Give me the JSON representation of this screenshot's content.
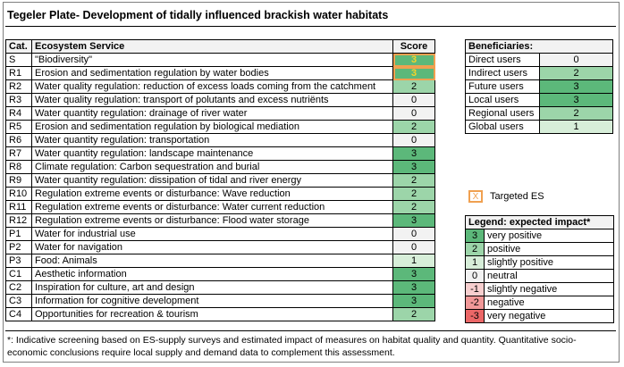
{
  "title": "Tegeler Plate- Development of tidally influenced brackish water habitats",
  "colors": {
    "3": "#5cb87a",
    "2": "#9cd5a9",
    "1": "#d7eed9",
    "0": "#f2f2f2",
    "-1": "#f7cfcf",
    "-2": "#f19898",
    "-3": "#eb6767",
    "targeted_border": "#f0a050",
    "targeted_text": "#f5d328"
  },
  "main": {
    "headers": {
      "cat": "Cat.",
      "service": "Ecosystem Service",
      "score": "Score"
    },
    "rows": [
      {
        "cat": "S",
        "service": "\"Biodiversity\"",
        "score": "3",
        "targeted": true
      },
      {
        "cat": "R1",
        "service": "Erosion and sedimentation regulation by water bodies",
        "score": "3",
        "targeted": true
      },
      {
        "cat": "R2",
        "service": "Water quality regulation: reduction of excess loads coming from the catchment",
        "score": "2"
      },
      {
        "cat": "R3",
        "service": "Water quality regulation: transport of polutants and excess nutriënts",
        "score": "0"
      },
      {
        "cat": "R4",
        "service": "Water quantity regulation: drainage of river water",
        "score": "0"
      },
      {
        "cat": "R5",
        "service": "Erosion and sedimentation regulation by biological mediation",
        "score": "2"
      },
      {
        "cat": "R6",
        "service": "Water quantity regulation: transportation",
        "score": "0"
      },
      {
        "cat": "R7",
        "service": "Water quantity regulation: landscape maintenance",
        "score": "3"
      },
      {
        "cat": "R8",
        "service": "Climate regulation: Carbon sequestration and burial",
        "score": "3"
      },
      {
        "cat": "R9",
        "service": "Water quantity regulation: dissipation of tidal and river energy",
        "score": "2"
      },
      {
        "cat": "R10",
        "service": "Regulation extreme events or disturbance: Wave reduction",
        "score": "2"
      },
      {
        "cat": "R11",
        "service": "Regulation extreme events or disturbance: Water current reduction",
        "score": "2"
      },
      {
        "cat": "R12",
        "service": "Regulation extreme events or disturbance: Flood water storage",
        "score": "3"
      },
      {
        "cat": "P1",
        "service": "Water for industrial use",
        "score": "0"
      },
      {
        "cat": "P2",
        "service": "Water for navigation",
        "score": "0"
      },
      {
        "cat": "P3",
        "service": "Food: Animals",
        "score": "1"
      },
      {
        "cat": "C1",
        "service": "Aesthetic information",
        "score": "3"
      },
      {
        "cat": "C2",
        "service": "Inspiration for culture, art and design",
        "score": "3"
      },
      {
        "cat": "C3",
        "service": "Information for cognitive development",
        "score": "3"
      },
      {
        "cat": "C4",
        "service": "Opportunities for recreation & tourism",
        "score": "2"
      }
    ]
  },
  "beneficiaries": {
    "header": "Beneficiaries:",
    "rows": [
      {
        "label": "Direct users",
        "value": "0"
      },
      {
        "label": "Indirect users",
        "value": "2"
      },
      {
        "label": "Future users",
        "value": "3"
      },
      {
        "label": "Local users",
        "value": "3"
      },
      {
        "label": "Regional users",
        "value": "2"
      },
      {
        "label": "Global users",
        "value": "1"
      }
    ]
  },
  "targeted": {
    "mark": "X",
    "label": "Targeted ES"
  },
  "legend": {
    "header": "Legend: expected  impact*",
    "rows": [
      {
        "score": "3",
        "label": "very positive"
      },
      {
        "score": "2",
        "label": "positive"
      },
      {
        "score": "1",
        "label": "slightly positive"
      },
      {
        "score": "0",
        "label": "neutral"
      },
      {
        "score": "-1",
        "label": "slightly negative"
      },
      {
        "score": "-2",
        "label": "negative"
      },
      {
        "score": "-3",
        "label": "very negative"
      }
    ]
  },
  "note": "*: Indicative screening based on ES-supply surveys and estimated impact of measures on habitat quality and quantity. Quantitative socio-economic conclusions require local supply and demand data to complement this assessment."
}
